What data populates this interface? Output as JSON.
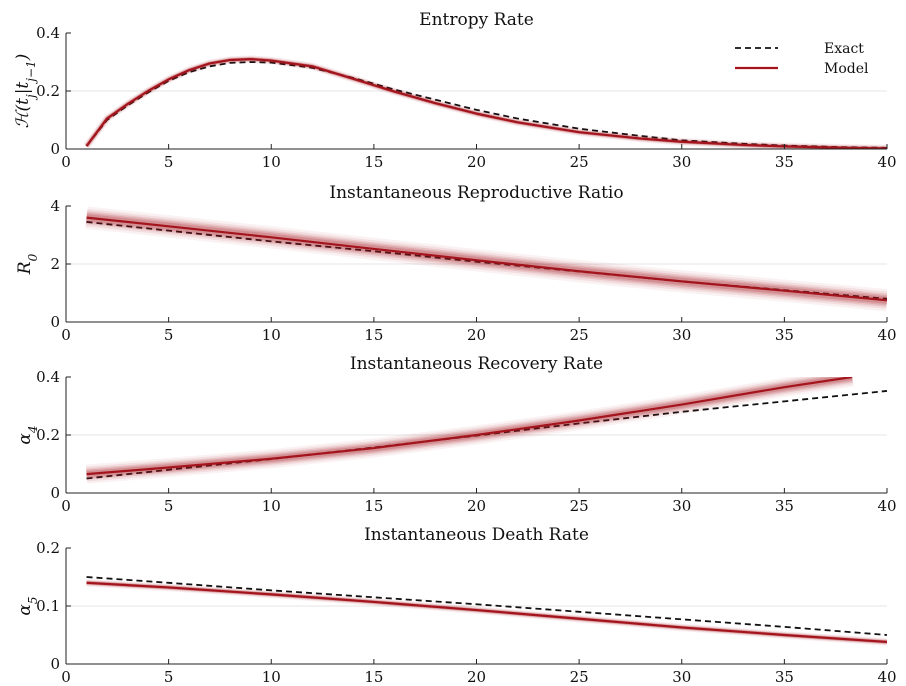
{
  "chart_data": [
    {
      "type": "line",
      "title": "Entropy Rate",
      "ylabel": "H(t_j|t_{j-1})",
      "ylabel_symbol": "ℋ",
      "ylabel_rest": "(t",
      "ylabel_sub1": "j",
      "ylabel_mid": "|t",
      "ylabel_sub2": "j−1",
      "ylabel_end": ")",
      "xlim": [
        0,
        40
      ],
      "ylim": [
        0,
        0.4
      ],
      "xticks": [
        "0",
        "5",
        "10",
        "15",
        "20",
        "25",
        "30",
        "35",
        "40"
      ],
      "yticks": [
        "0",
        "0.2",
        "0.4"
      ],
      "grid": "horizontal",
      "legend": {
        "placement": "top-right",
        "entries": [
          "Exact",
          "Model"
        ]
      },
      "series": [
        {
          "name": "Exact",
          "style": "dashed",
          "color": "#111111",
          "x": [
            1,
            2,
            3,
            4,
            5,
            6,
            7,
            8,
            9,
            10,
            12,
            14,
            16,
            18,
            20,
            22,
            25,
            28,
            30,
            33,
            35,
            38,
            40
          ],
          "y": [
            0.01,
            0.1,
            0.15,
            0.195,
            0.235,
            0.265,
            0.285,
            0.297,
            0.3,
            0.298,
            0.28,
            0.245,
            0.205,
            0.17,
            0.135,
            0.105,
            0.07,
            0.045,
            0.03,
            0.018,
            0.012,
            0.006,
            0.004
          ]
        },
        {
          "name": "Model",
          "style": "solid",
          "color": "#a3141c",
          "band": 0.012,
          "x": [
            1,
            2,
            3,
            4,
            5,
            6,
            7,
            8,
            9,
            10,
            12,
            14,
            16,
            18,
            20,
            22,
            25,
            28,
            30,
            33,
            35,
            38,
            40
          ],
          "y": [
            0.01,
            0.105,
            0.155,
            0.2,
            0.24,
            0.272,
            0.295,
            0.307,
            0.31,
            0.305,
            0.285,
            0.242,
            0.198,
            0.158,
            0.122,
            0.092,
            0.058,
            0.036,
            0.025,
            0.014,
            0.009,
            0.004,
            0.002
          ]
        }
      ]
    },
    {
      "type": "line",
      "title": "Instantaneous Reproductive Ratio",
      "ylabel": "R_0",
      "ylabel_symbol": "R",
      "ylabel_sub1": "0",
      "xlim": [
        0,
        40
      ],
      "ylim": [
        0,
        4
      ],
      "xticks": [
        "0",
        "5",
        "10",
        "15",
        "20",
        "25",
        "30",
        "35",
        "40"
      ],
      "yticks": [
        "0",
        "2",
        "4"
      ],
      "grid": "horizontal",
      "series": [
        {
          "style": "dashed",
          "color": "#111111",
          "x": [
            1,
            5,
            10,
            15,
            20,
            25,
            30,
            35,
            40
          ],
          "y": [
            3.45,
            3.15,
            2.78,
            2.44,
            2.08,
            1.74,
            1.4,
            1.1,
            0.8
          ]
        },
        {
          "style": "solid",
          "color": "#a3141c",
          "band": 0.35,
          "x": [
            1,
            5,
            10,
            15,
            20,
            25,
            30,
            35,
            40
          ],
          "y": [
            3.6,
            3.3,
            2.92,
            2.52,
            2.13,
            1.75,
            1.4,
            1.08,
            0.75
          ]
        }
      ]
    },
    {
      "type": "line",
      "title": "Instantaneous Recovery Rate",
      "ylabel": "α_4",
      "ylabel_symbol": "α",
      "ylabel_sub1": "4",
      "xlim": [
        0,
        40
      ],
      "ylim": [
        0,
        0.4
      ],
      "xticks": [
        "0",
        "5",
        "10",
        "15",
        "20",
        "25",
        "30",
        "35",
        "40"
      ],
      "yticks": [
        "0",
        "0.2",
        "0.4"
      ],
      "grid": "horizontal",
      "series": [
        {
          "style": "dashed",
          "color": "#111111",
          "x": [
            1,
            5,
            10,
            15,
            20,
            25,
            30,
            35,
            40
          ],
          "y": [
            0.05,
            0.08,
            0.117,
            0.157,
            0.198,
            0.24,
            0.28,
            0.316,
            0.352
          ]
        },
        {
          "style": "solid",
          "color": "#a3141c",
          "band": 0.03,
          "x": [
            1,
            5,
            10,
            15,
            20,
            25,
            30,
            35,
            38.3
          ],
          "y": [
            0.065,
            0.088,
            0.118,
            0.155,
            0.2,
            0.25,
            0.305,
            0.365,
            0.4
          ]
        }
      ]
    },
    {
      "type": "line",
      "title": "Instantaneous Death Rate",
      "ylabel": "α_5",
      "ylabel_symbol": "α",
      "ylabel_sub1": "5",
      "xlim": [
        0,
        40
      ],
      "ylim": [
        0,
        0.2
      ],
      "xticks": [
        "0",
        "5",
        "10",
        "15",
        "20",
        "25",
        "30",
        "35",
        "40"
      ],
      "yticks": [
        "0",
        "0.1",
        "0.2"
      ],
      "grid": "horizontal",
      "series": [
        {
          "style": "dashed",
          "color": "#111111",
          "x": [
            1,
            5,
            10,
            15,
            20,
            25,
            30,
            35,
            40
          ],
          "y": [
            0.15,
            0.14,
            0.127,
            0.115,
            0.103,
            0.09,
            0.077,
            0.064,
            0.05
          ]
        },
        {
          "style": "solid",
          "color": "#a3141c",
          "band": 0.006,
          "x": [
            1,
            5,
            10,
            15,
            20,
            25,
            30,
            35,
            40
          ],
          "y": [
            0.14,
            0.132,
            0.12,
            0.107,
            0.093,
            0.078,
            0.063,
            0.05,
            0.038
          ]
        }
      ]
    }
  ]
}
